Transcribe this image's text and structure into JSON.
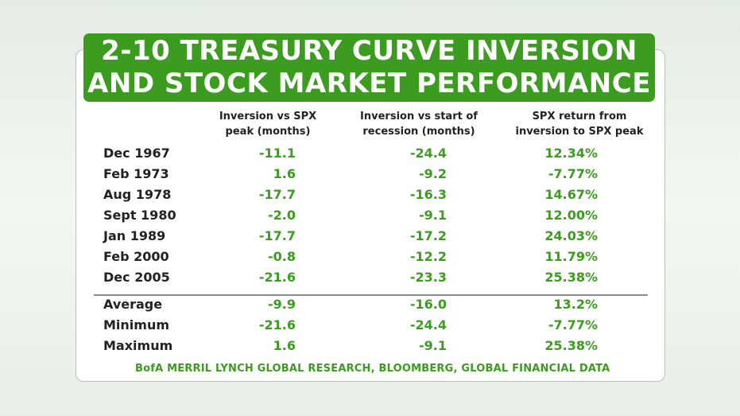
{
  "title": {
    "line1": "2-10 TREASURY CURVE INVERSION",
    "line2": "AND STOCK MARKET PERFORMANCE"
  },
  "columns": [
    {
      "line1": "Inversion vs SPX",
      "line2": "peak (months)"
    },
    {
      "line1": "Inversion vs start of",
      "line2": "recession (months)"
    },
    {
      "line1": "SPX return from",
      "line2": "inversion to SPX peak"
    }
  ],
  "rows": [
    {
      "label": "Dec 1967",
      "v1": "-11.1",
      "v2": "-24.4",
      "v3": "12.34%"
    },
    {
      "label": "Feb 1973",
      "v1": "1.6",
      "v2": "-9.2",
      "v3": "-7.77%"
    },
    {
      "label": "Aug 1978",
      "v1": "-17.7",
      "v2": "-16.3",
      "v3": "14.67%"
    },
    {
      "label": "Sept 1980",
      "v1": "-2.0",
      "v2": "-9.1",
      "v3": "12.00%"
    },
    {
      "label": "Jan 1989",
      "v1": "-17.7",
      "v2": "-17.2",
      "v3": "24.03%"
    },
    {
      "label": "Feb 2000",
      "v1": "-0.8",
      "v2": "-12.2",
      "v3": "11.79%"
    },
    {
      "label": "Dec 2005",
      "v1": "-21.6",
      "v2": "-23.3",
      "v3": "25.38%"
    }
  ],
  "summary": [
    {
      "label": "Average",
      "v1": "-9.9",
      "v2": "-16.0",
      "v3": "13.2%"
    },
    {
      "label": "Minimum",
      "v1": "-21.6",
      "v2": "-24.4",
      "v3": "-7.77%"
    },
    {
      "label": "Maximum",
      "v1": "1.6",
      "v2": "-9.1",
      "v3": "25.38%"
    }
  ],
  "source": "BofA MERRIL LYNCH GLOBAL RESEARCH, BLOOMBERG, GLOBAL FINANCIAL DATA",
  "colors": {
    "accent": "#3b9c1f",
    "text": "#222222"
  }
}
